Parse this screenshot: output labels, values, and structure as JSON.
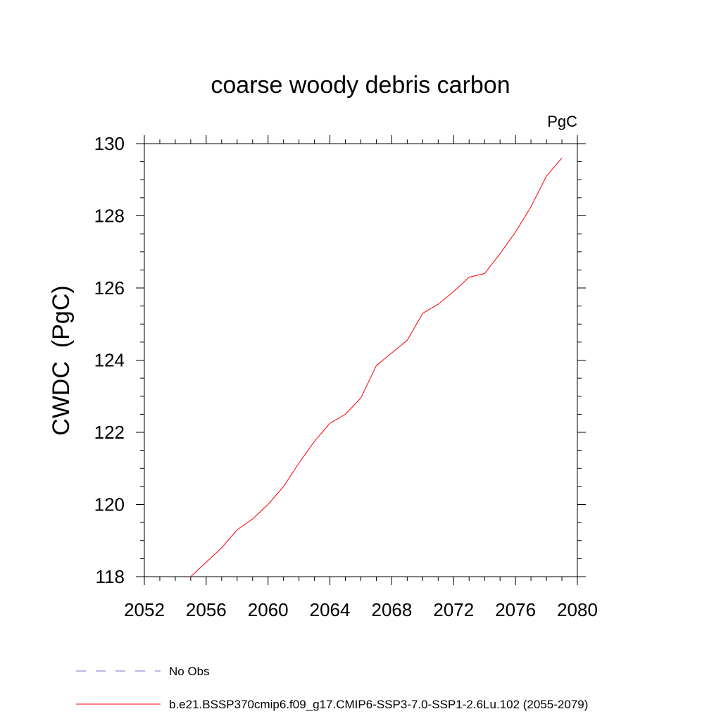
{
  "chart_data": {
    "type": "line",
    "title": "coarse woody debris carbon",
    "units": "PgC",
    "xlabel": "",
    "ylabel": "CWDC  (PgC)",
    "xlim": [
      2052,
      2080
    ],
    "ylim": [
      118,
      130
    ],
    "xticks": [
      2052,
      2056,
      2060,
      2064,
      2068,
      2072,
      2076,
      2080
    ],
    "yticks": [
      118,
      120,
      122,
      124,
      126,
      128,
      130
    ],
    "grid": false,
    "legend_position": "bottom",
    "series": [
      {
        "name": "b.e21.BSSP370cmip6.f09_g17.CMIP6-SSP3-7.0-SSP1-2.6Lu.102 (2055-2079)",
        "color": "#ff0000",
        "style": "solid",
        "x": [
          2055,
          2056,
          2057,
          2058,
          2059,
          2060,
          2061,
          2062,
          2063,
          2064,
          2065,
          2066,
          2067,
          2068,
          2069,
          2070,
          2071,
          2072,
          2073,
          2074,
          2075,
          2076,
          2077,
          2078,
          2079
        ],
        "y": [
          118.0,
          118.4,
          118.8,
          119.3,
          119.6,
          120.0,
          120.5,
          121.15,
          121.75,
          122.25,
          122.5,
          122.95,
          123.85,
          124.2,
          124.55,
          125.3,
          125.55,
          125.9,
          126.3,
          126.4,
          126.95,
          127.55,
          128.25,
          129.1,
          129.6
        ]
      },
      {
        "name": "No Obs",
        "color": "#7b6fc6",
        "style": "dashed",
        "x": [],
        "y": []
      }
    ]
  }
}
